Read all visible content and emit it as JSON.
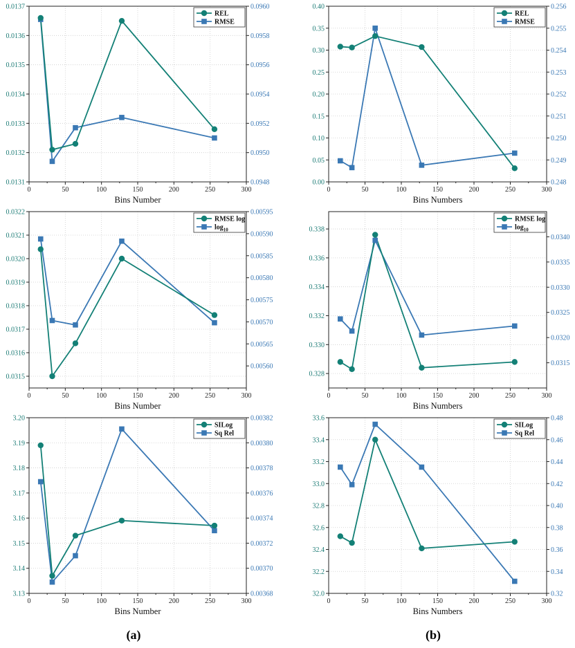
{
  "colors": {
    "teal": "#138076",
    "blue": "#3a78b4",
    "axis": "#222222",
    "grid": "#cccccc"
  },
  "panel_labels": [
    "(a)",
    "(b)"
  ],
  "chart_data": [
    {
      "id": "a1",
      "type": "line",
      "column": "a",
      "xlabel": "Bins Number",
      "xlim": [
        0,
        300
      ],
      "xticks": [
        "0",
        "50",
        "100",
        "150",
        "200",
        "250",
        "300"
      ],
      "left": {
        "name": "REL",
        "marker": "circle",
        "ylim": [
          0.0131,
          0.0137
        ],
        "ticks": [
          "0.0131",
          "0.0132",
          "0.0133",
          "0.0134",
          "0.0135",
          "0.0136",
          "0.0137"
        ],
        "x": [
          16,
          32,
          64,
          128,
          256
        ],
        "y": [
          0.01366,
          0.01321,
          0.01323,
          0.01365,
          0.01328
        ]
      },
      "right": {
        "name": "RMSE",
        "marker": "square",
        "ylim": [
          0.0948,
          0.096
        ],
        "ticks": [
          "0.0948",
          "0.0950",
          "0.0952",
          "0.0954",
          "0.0956",
          "0.0958",
          "0.0960"
        ],
        "x": [
          16,
          32,
          64,
          128,
          256
        ],
        "y": [
          0.09591,
          0.09494,
          0.09517,
          0.09524,
          0.0951
        ]
      }
    },
    {
      "id": "b1",
      "type": "line",
      "column": "b",
      "xlabel": "Bins Numbers",
      "xlim": [
        0,
        300
      ],
      "xticks": [
        "0",
        "50",
        "100",
        "150",
        "200",
        "250",
        "300"
      ],
      "left": {
        "name": "REL",
        "marker": "circle",
        "ylim": [
          0.0,
          0.4
        ],
        "ticks": [
          "0.00",
          "0.05",
          "0.10",
          "0.15",
          "0.20",
          "0.25",
          "0.30",
          "0.35",
          "0.40"
        ],
        "x": [
          16,
          32,
          64,
          128,
          256
        ],
        "y": [
          0.308,
          0.306,
          0.332,
          0.307,
          0.031
        ]
      },
      "right": {
        "name": "RMSE",
        "marker": "square",
        "ylim": [
          0.248,
          0.256
        ],
        "ticks": [
          "0.248",
          "0.249",
          "0.250",
          "0.251",
          "0.252",
          "0.253",
          "0.254",
          "0.255",
          "0.256"
        ],
        "x": [
          16,
          32,
          64,
          128,
          256
        ],
        "y": [
          0.24896,
          0.24865,
          0.255,
          0.24876,
          0.24931
        ]
      }
    },
    {
      "id": "a2",
      "type": "line",
      "column": "a",
      "xlabel": "Bins Number",
      "xlim": [
        0,
        300
      ],
      "xticks": [
        "0",
        "50",
        "100",
        "150",
        "200",
        "250",
        "300"
      ],
      "left": {
        "name": "RMSE log",
        "marker": "circle",
        "ylim": [
          0.03145,
          0.0322
        ],
        "ticks": [
          "0.0315",
          "0.0316",
          "0.0317",
          "0.0318",
          "0.0319",
          "0.0320",
          "0.0321",
          "0.0322"
        ],
        "x": [
          16,
          32,
          64,
          128,
          256
        ],
        "y": [
          0.03204,
          0.0315,
          0.03164,
          0.032,
          0.03176
        ]
      },
      "right": {
        "name": "log",
        "sub": "10",
        "marker": "square",
        "ylim": [
          0.00555,
          0.00595
        ],
        "ticks": [
          "0.00560",
          "0.00565",
          "0.00570",
          "0.00575",
          "0.00580",
          "0.00585",
          "0.00590",
          "0.00595"
        ],
        "x": [
          16,
          32,
          64,
          128,
          256
        ],
        "y": [
          0.005888,
          0.005703,
          0.005693,
          0.005883,
          0.005698
        ]
      }
    },
    {
      "id": "b2",
      "type": "line",
      "column": "b",
      "xlabel": "Bins Numbers",
      "xlim": [
        0,
        300
      ],
      "xticks": [
        "0",
        "50",
        "100",
        "150",
        "200",
        "250",
        "300"
      ],
      "left": {
        "name": "RMSE log",
        "marker": "circle",
        "ylim": [
          0.327,
          0.3392
        ],
        "ticks": [
          "0.328",
          "0.330",
          "0.332",
          "0.334",
          "0.336",
          "0.338"
        ],
        "x": [
          16,
          32,
          64,
          128,
          256
        ],
        "y": [
          0.3288,
          0.3283,
          0.3376,
          0.3284,
          0.3288
        ]
      },
      "right": {
        "name": "log",
        "sub": "10",
        "marker": "square",
        "ylim": [
          0.031,
          0.0345
        ],
        "ticks": [
          "0.0315",
          "0.0320",
          "0.0325",
          "0.0330",
          "0.0335",
          "0.0340"
        ],
        "x": [
          16,
          32,
          64,
          128,
          256
        ],
        "y": [
          0.03237,
          0.03213,
          0.03393,
          0.03205,
          0.03223
        ]
      }
    },
    {
      "id": "a3",
      "type": "line",
      "column": "a",
      "xlabel": "Bins Number",
      "xlim": [
        0,
        300
      ],
      "xticks": [
        "0",
        "50",
        "100",
        "150",
        "200",
        "250",
        "300"
      ],
      "left": {
        "name": "SILog",
        "marker": "circle",
        "ylim": [
          3.13,
          3.2
        ],
        "ticks": [
          "3.13",
          "3.14",
          "3.15",
          "3.16",
          "3.17",
          "3.18",
          "3.19",
          "3.20"
        ],
        "x": [
          16,
          32,
          64,
          128,
          256
        ],
        "y": [
          3.189,
          3.137,
          3.153,
          3.159,
          3.157
        ]
      },
      "right": {
        "name": "Sq Rel",
        "marker": "square",
        "ylim": [
          0.00368,
          0.00382
        ],
        "ticks": [
          "0.00368",
          "0.00370",
          "0.00372",
          "0.00374",
          "0.00376",
          "0.00378",
          "0.00380",
          "0.00382"
        ],
        "x": [
          16,
          32,
          64,
          128,
          256
        ],
        "y": [
          0.003769,
          0.003689,
          0.00371,
          0.003811,
          0.00373
        ]
      }
    },
    {
      "id": "b3",
      "type": "line",
      "column": "b",
      "xlabel": "Bins Numbers",
      "xlim": [
        0,
        300
      ],
      "xticks": [
        "0",
        "50",
        "100",
        "150",
        "200",
        "250",
        "300"
      ],
      "left": {
        "name": "SILog",
        "marker": "circle",
        "ylim": [
          32.0,
          33.6
        ],
        "ticks": [
          "32.0",
          "32.2",
          "32.4",
          "32.6",
          "32.8",
          "33.0",
          "33.2",
          "33.4",
          "33.6"
        ],
        "x": [
          16,
          32,
          64,
          128,
          256
        ],
        "y": [
          32.52,
          32.46,
          33.4,
          32.41,
          32.47
        ]
      },
      "right": {
        "name": "Sq Rel",
        "marker": "square",
        "ylim": [
          0.32,
          0.48
        ],
        "ticks": [
          "0.32",
          "0.34",
          "0.36",
          "0.38",
          "0.40",
          "0.42",
          "0.44",
          "0.46",
          "0.48"
        ],
        "x": [
          16,
          32,
          64,
          128,
          256
        ],
        "y": [
          0.435,
          0.419,
          0.474,
          0.435,
          0.331
        ]
      }
    }
  ]
}
